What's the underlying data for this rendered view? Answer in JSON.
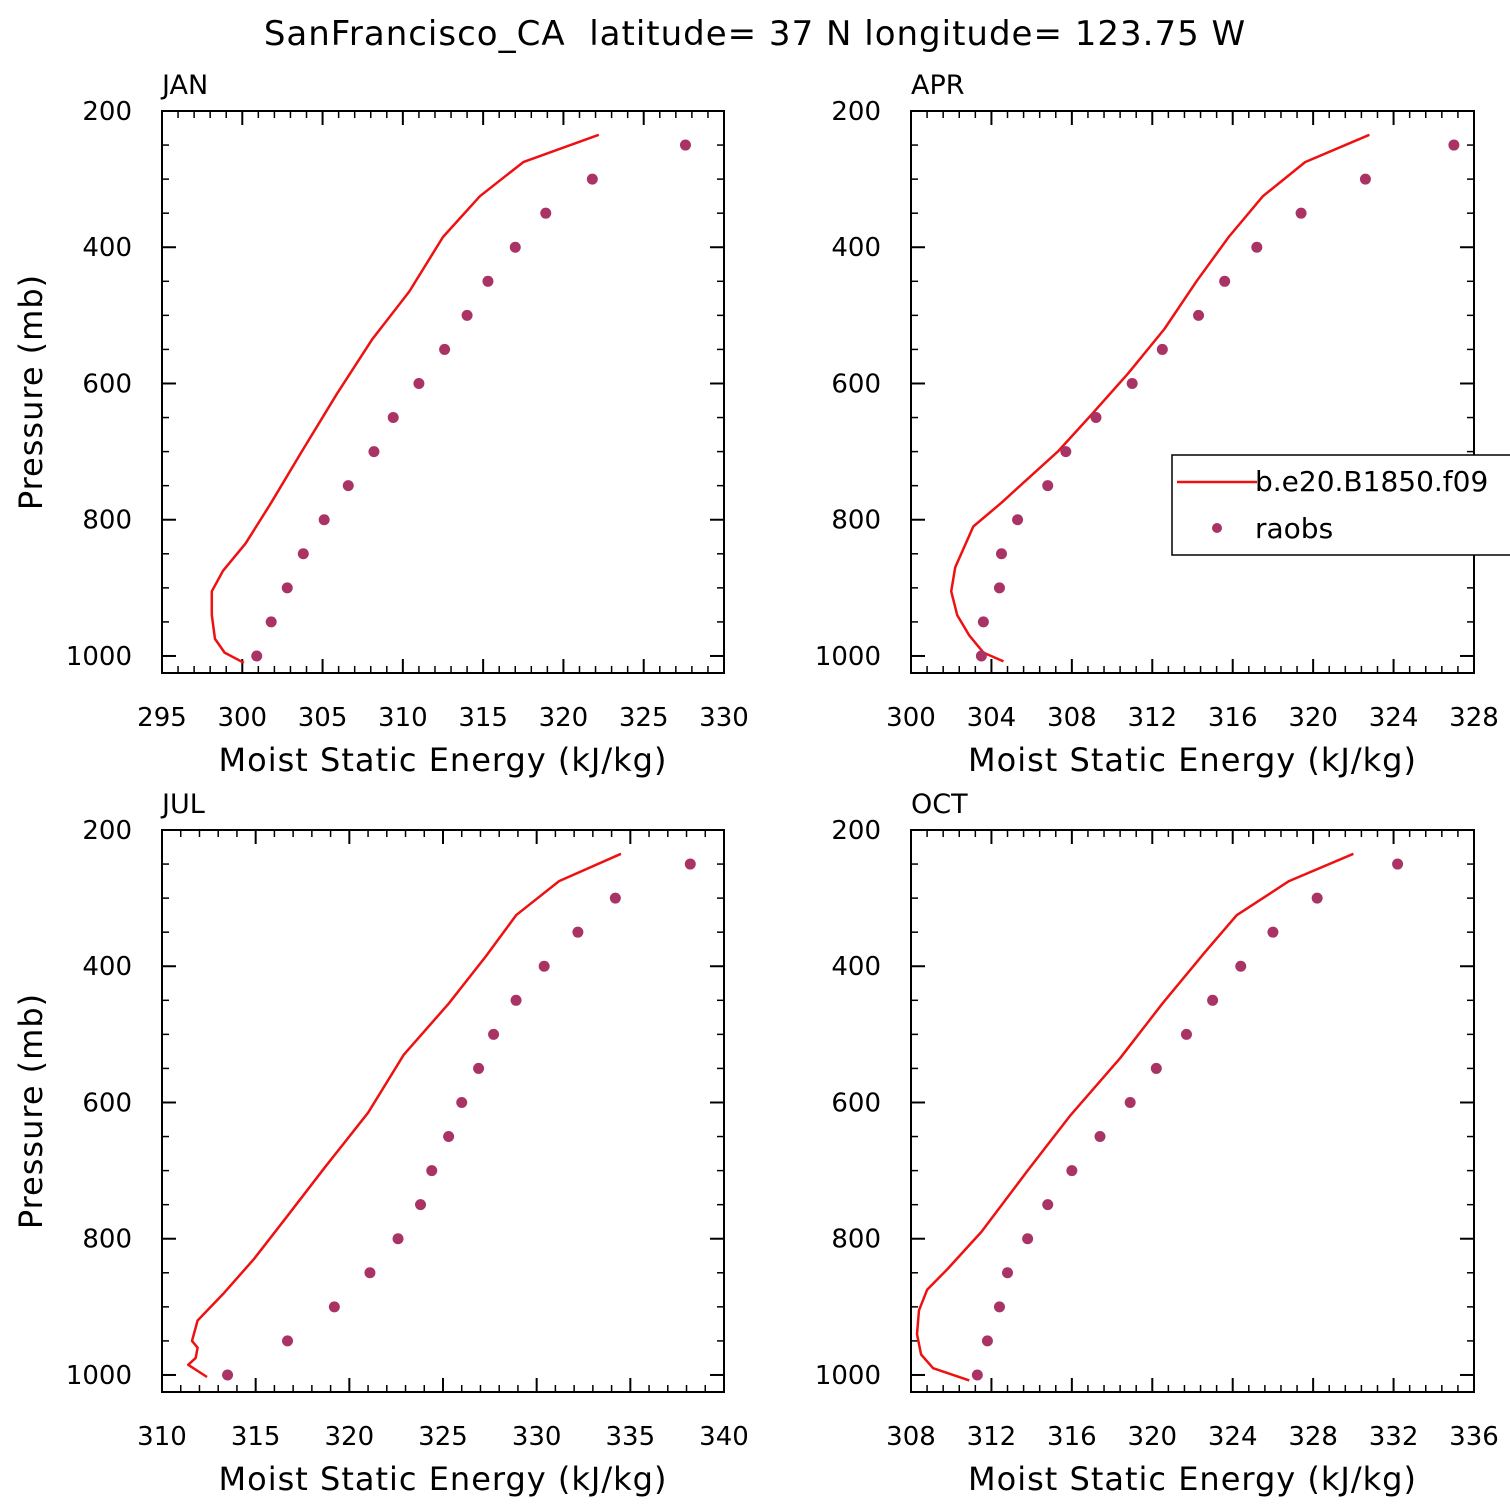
{
  "figure_title": "SanFrancisco_CA  latitude= 37 N longitude= 123.75 W",
  "colors": {
    "model": "#ee1111",
    "raobs": "#aa3366",
    "axis": "#000000"
  },
  "legend": {
    "model_label": "b.e20.B1850.f09",
    "obs_label": "raobs"
  },
  "chart_data": [
    {
      "type": "line",
      "title": "JAN",
      "xlabel": "Moist Static Energy (kJ/kg)",
      "ylabel": "Pressure (mb)",
      "xlim": [
        295,
        330
      ],
      "ylim": [
        1025,
        200
      ],
      "xticks": [
        295,
        300,
        305,
        310,
        315,
        320,
        325,
        330
      ],
      "yticks": [
        200,
        400,
        600,
        800,
        1000
      ],
      "series": [
        {
          "name": "b.e20.B1850.f09",
          "kind": "line",
          "x": [
            322.2,
            317.5,
            314.8,
            312.5,
            310.4,
            308.1,
            305.9,
            303.7,
            301.8,
            300.2,
            298.8,
            298.1,
            298.1,
            298.3,
            298.9,
            300.1
          ],
          "y": [
            235,
            275,
            325,
            385,
            465,
            535,
            615,
            700,
            775,
            835,
            875,
            905,
            940,
            975,
            995,
            1010
          ]
        },
        {
          "name": "raobs",
          "kind": "markers",
          "x": [
            327.6,
            321.8,
            318.9,
            317.0,
            315.3,
            314.0,
            312.6,
            311.0,
            309.4,
            308.2,
            306.6,
            305.1,
            303.8,
            302.8,
            301.8,
            300.9
          ],
          "y": [
            250,
            300,
            350,
            400,
            450,
            500,
            550,
            600,
            650,
            700,
            750,
            800,
            850,
            900,
            950,
            1000
          ]
        }
      ]
    },
    {
      "type": "line",
      "title": "APR",
      "xlabel": "Moist Static Energy (kJ/kg)",
      "ylabel": "",
      "xlim": [
        300,
        328
      ],
      "ylim": [
        1025,
        200
      ],
      "xticks": [
        300,
        304,
        308,
        312,
        316,
        320,
        324,
        328
      ],
      "yticks": [
        200,
        400,
        600,
        800,
        1000
      ],
      "series": [
        {
          "name": "b.e20.B1850.f09",
          "kind": "line",
          "x": [
            322.8,
            319.6,
            317.5,
            315.8,
            314.2,
            312.6,
            310.8,
            309.0,
            307.3,
            305.8,
            304.5,
            303.1,
            302.2,
            302.0,
            302.3,
            302.9,
            303.6,
            304.6
          ],
          "y": [
            235,
            275,
            325,
            385,
            450,
            520,
            585,
            645,
            700,
            740,
            775,
            810,
            870,
            905,
            940,
            970,
            995,
            1008
          ]
        },
        {
          "name": "raobs",
          "kind": "markers",
          "x": [
            327.0,
            322.6,
            319.4,
            317.2,
            315.6,
            314.3,
            312.5,
            311.0,
            309.2,
            307.7,
            306.8,
            305.3,
            304.5,
            304.4,
            303.6,
            303.5
          ],
          "y": [
            250,
            300,
            350,
            400,
            450,
            500,
            550,
            600,
            650,
            700,
            750,
            800,
            850,
            900,
            950,
            1000
          ]
        }
      ]
    },
    {
      "type": "line",
      "title": "JUL",
      "xlabel": "Moist Static Energy (kJ/kg)",
      "ylabel": "Pressure (mb)",
      "xlim": [
        310,
        340
      ],
      "ylim": [
        1025,
        200
      ],
      "xticks": [
        310,
        315,
        320,
        325,
        330,
        335,
        340
      ],
      "yticks": [
        200,
        400,
        600,
        800,
        1000
      ],
      "series": [
        {
          "name": "b.e20.B1850.f09",
          "kind": "line",
          "x": [
            334.5,
            331.2,
            328.9,
            327.3,
            325.3,
            322.9,
            321.0,
            318.7,
            316.6,
            314.9,
            313.3,
            311.9,
            311.6,
            311.9,
            311.8,
            311.4,
            312.4
          ],
          "y": [
            235,
            275,
            325,
            385,
            455,
            530,
            615,
            695,
            770,
            830,
            880,
            920,
            950,
            960,
            975,
            985,
            1003
          ]
        },
        {
          "name": "raobs",
          "kind": "markers",
          "x": [
            338.2,
            334.2,
            332.2,
            330.4,
            328.9,
            327.7,
            326.9,
            326.0,
            325.3,
            324.4,
            323.8,
            322.6,
            321.1,
            319.2,
            316.7,
            313.5
          ],
          "y": [
            250,
            300,
            350,
            400,
            450,
            500,
            550,
            600,
            650,
            700,
            750,
            800,
            850,
            900,
            950,
            1000
          ]
        }
      ]
    },
    {
      "type": "line",
      "title": "OCT",
      "xlabel": "Moist Static Energy (kJ/kg)",
      "ylabel": "",
      "xlim": [
        308,
        336
      ],
      "ylim": [
        1025,
        200
      ],
      "xticks": [
        308,
        312,
        316,
        320,
        324,
        328,
        332,
        336
      ],
      "yticks": [
        200,
        400,
        600,
        800,
        1000
      ],
      "series": [
        {
          "name": "b.e20.B1850.f09",
          "kind": "line",
          "x": [
            330.0,
            326.8,
            324.2,
            322.6,
            320.5,
            318.4,
            315.9,
            313.8,
            311.5,
            309.8,
            308.8,
            308.4,
            308.3,
            308.5,
            309.1,
            310.9
          ],
          "y": [
            235,
            275,
            325,
            380,
            455,
            535,
            620,
            700,
            790,
            845,
            875,
            905,
            940,
            970,
            990,
            1008
          ]
        },
        {
          "name": "raobs",
          "kind": "markers",
          "x": [
            332.2,
            328.2,
            326.0,
            324.4,
            323.0,
            321.7,
            320.2,
            318.9,
            317.4,
            316.0,
            314.8,
            313.8,
            312.8,
            312.4,
            311.8,
            311.3
          ],
          "y": [
            250,
            300,
            350,
            400,
            450,
            500,
            550,
            600,
            650,
            700,
            750,
            800,
            850,
            900,
            950,
            1000
          ]
        }
      ]
    }
  ]
}
